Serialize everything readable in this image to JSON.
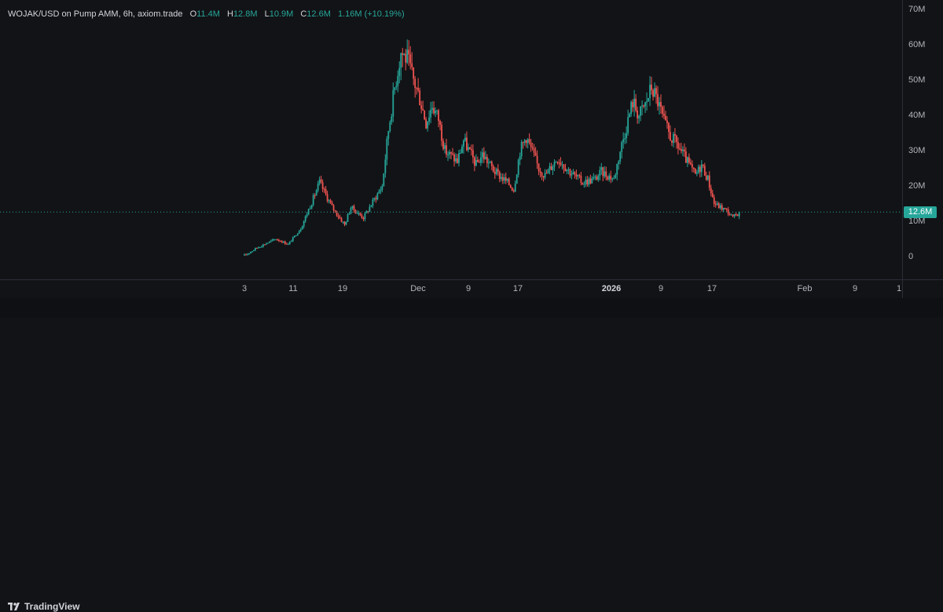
{
  "legend": {
    "symbol": "WOJAK/USD on Pump AMM, 6h, axiom.trade",
    "open_label": "O",
    "open": "11.4M",
    "high_label": "H",
    "high": "12.8M",
    "low_label": "L",
    "low": "10.9M",
    "close_label": "C",
    "close": "12.6M",
    "change": "1.16M (+10.19%)"
  },
  "current_price_label": "12.6M",
  "footer": {
    "brand": "TradingView"
  },
  "colors": {
    "up": "#26a69a",
    "down": "#ef5350",
    "background": "#121316",
    "price_line": "#26a69a"
  },
  "chart_data": {
    "type": "candlestick",
    "timeframe": "6h",
    "ylim": [
      0,
      70
    ],
    "y_unit": "M",
    "y_ticks": [
      "70M",
      "60M",
      "50M",
      "40M",
      "30M",
      "20M",
      "10M",
      "0"
    ],
    "x_ticks": [
      "3",
      "11",
      "19",
      "Dec",
      "9",
      "17",
      "2026",
      "9",
      "17",
      "Feb",
      "9",
      "1"
    ],
    "last_price": 12.6,
    "grid": false,
    "close_path": [
      {
        "x": "Nov 3",
        "y": 0.3
      },
      {
        "x": "Nov 5",
        "y": 2.5
      },
      {
        "x": "Nov 8",
        "y": 5.0
      },
      {
        "x": "Nov 10",
        "y": 3.5
      },
      {
        "x": "Nov 12",
        "y": 8.0
      },
      {
        "x": "Nov 14",
        "y": 16.5
      },
      {
        "x": "Nov 15",
        "y": 21.0
      },
      {
        "x": "Nov 17",
        "y": 14.0
      },
      {
        "x": "Nov 19",
        "y": 9.0
      },
      {
        "x": "Nov 20",
        "y": 14.0
      },
      {
        "x": "Nov 22",
        "y": 11.0
      },
      {
        "x": "Nov 24",
        "y": 17.0
      },
      {
        "x": "Nov 25",
        "y": 20.0
      },
      {
        "x": "Nov 26",
        "y": 36.0
      },
      {
        "x": "Nov 27",
        "y": 48.0
      },
      {
        "x": "Nov 28",
        "y": 58.0
      },
      {
        "x": "Nov 29",
        "y": 56.0
      },
      {
        "x": "Nov 30",
        "y": 50.0
      },
      {
        "x": "Dec 1",
        "y": 45.0
      },
      {
        "x": "Dec 2",
        "y": 38.0
      },
      {
        "x": "Dec 3",
        "y": 43.0
      },
      {
        "x": "Dec 4",
        "y": 39.0
      },
      {
        "x": "Dec 5",
        "y": 30.0
      },
      {
        "x": "Dec 7",
        "y": 27.0
      },
      {
        "x": "Dec 8",
        "y": 33.0
      },
      {
        "x": "Dec 10",
        "y": 26.0
      },
      {
        "x": "Dec 11",
        "y": 29.0
      },
      {
        "x": "Dec 13",
        "y": 24.0
      },
      {
        "x": "Dec 15",
        "y": 21.0
      },
      {
        "x": "Dec 16",
        "y": 19.0
      },
      {
        "x": "Dec 17",
        "y": 30.0
      },
      {
        "x": "Dec 18",
        "y": 34.0
      },
      {
        "x": "Dec 20",
        "y": 25.0
      },
      {
        "x": "Dec 21",
        "y": 23.0
      },
      {
        "x": "Dec 23",
        "y": 28.0
      },
      {
        "x": "Dec 25",
        "y": 24.0
      },
      {
        "x": "Dec 27",
        "y": 21.0
      },
      {
        "x": "Dec 29",
        "y": 22.0
      },
      {
        "x": "Dec 30",
        "y": 24.0
      },
      {
        "x": "Jan 1",
        "y": 22.0
      },
      {
        "x": "Jan 2",
        "y": 30.0
      },
      {
        "x": "Jan 3",
        "y": 37.0
      },
      {
        "x": "Jan 4",
        "y": 44.0
      },
      {
        "x": "Jan 5",
        "y": 40.0
      },
      {
        "x": "Jan 6",
        "y": 43.0
      },
      {
        "x": "Jan 7",
        "y": 48.0
      },
      {
        "x": "Jan 8",
        "y": 44.0
      },
      {
        "x": "Jan 9",
        "y": 38.0
      },
      {
        "x": "Jan 10",
        "y": 34.0
      },
      {
        "x": "Jan 11",
        "y": 32.0
      },
      {
        "x": "Jan 13",
        "y": 26.0
      },
      {
        "x": "Jan 14",
        "y": 23.0
      },
      {
        "x": "Jan 15",
        "y": 26.0
      },
      {
        "x": "Jan 16",
        "y": 22.0
      },
      {
        "x": "Jan 17",
        "y": 15.0
      },
      {
        "x": "Jan 18",
        "y": 14.0
      },
      {
        "x": "Jan 19",
        "y": 13.0
      },
      {
        "x": "Jan 20",
        "y": 11.0
      },
      {
        "x": "Jan 21",
        "y": 12.6
      }
    ]
  }
}
